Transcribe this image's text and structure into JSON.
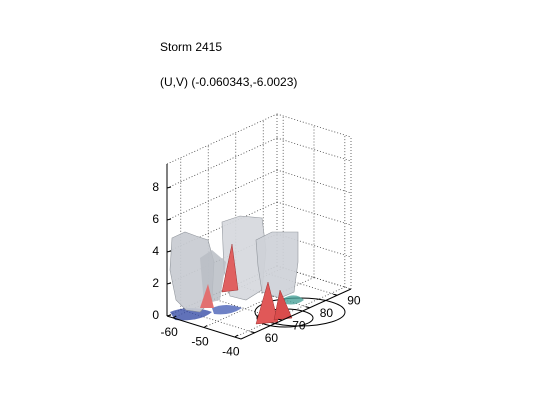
{
  "chart_data": {
    "type": "isosurface3d",
    "title": "Storm 2415",
    "subtitle": "(U,V) (-0.060343,-6.0023)",
    "xlim": [
      -62,
      -38
    ],
    "xticks": [
      -60,
      -50,
      -40
    ],
    "ylim": [
      55,
      95
    ],
    "yticks": [
      60,
      70,
      80,
      90
    ],
    "zlim": [
      0,
      9.5
    ],
    "zticks": [
      0,
      2,
      4,
      6,
      8
    ],
    "grid": true
  }
}
